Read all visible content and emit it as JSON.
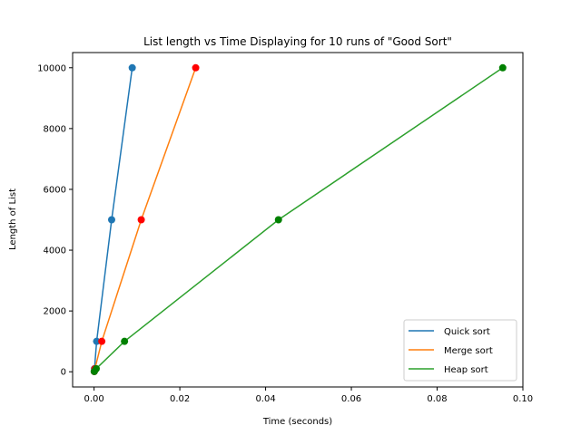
{
  "chart_data": {
    "type": "line",
    "title": "List length vs Time Displaying for 10 runs of \"Good Sort\"",
    "xlabel": "Time (seconds)",
    "ylabel": "Length of List",
    "xlim": [
      -0.005,
      0.1
    ],
    "ylim": [
      -500,
      10500
    ],
    "xticks": [
      0.0,
      0.02,
      0.04,
      0.06,
      0.08,
      0.1
    ],
    "xtick_labels": [
      "0.00",
      "0.02",
      "0.04",
      "0.06",
      "0.08",
      "0.10"
    ],
    "yticks": [
      0,
      2000,
      4000,
      6000,
      8000,
      10000
    ],
    "ytick_labels": [
      "0",
      "2000",
      "4000",
      "6000",
      "8000",
      "10000"
    ],
    "grid": false,
    "legend_position": "bottom-right",
    "series": [
      {
        "name": "Quick sort",
        "color": "#1f77b4",
        "marker_color": "#1f77b4",
        "points": [
          [
            5e-05,
            10
          ],
          [
            0.0001,
            100
          ],
          [
            0.0006,
            1000
          ],
          [
            0.0041,
            5000
          ],
          [
            0.0089,
            10000
          ]
        ]
      },
      {
        "name": "Merge sort",
        "color": "#ff7f0e",
        "marker_color": "#ff0000",
        "points": [
          [
            5e-05,
            10
          ],
          [
            0.0002,
            100
          ],
          [
            0.0018,
            1000
          ],
          [
            0.011,
            5000
          ],
          [
            0.0237,
            10000
          ]
        ]
      },
      {
        "name": "Heap sort",
        "color": "#2ca02c",
        "marker_color": "#008000",
        "points": [
          [
            5e-05,
            10
          ],
          [
            0.0005,
            100
          ],
          [
            0.0071,
            1000
          ],
          [
            0.043,
            5000
          ],
          [
            0.0953,
            10000
          ]
        ]
      }
    ]
  }
}
